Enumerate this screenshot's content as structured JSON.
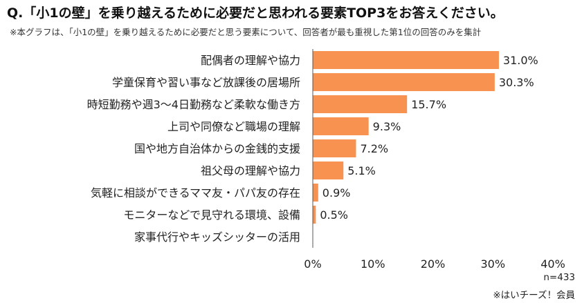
{
  "title": "Q.「小1の壁」を乗り越えるために必要だと思われる要素TOP3をお答えください。",
  "note": "※本グラフは、「小1の壁」を乗り越えるために必要だと思う要素について、回答者が最も重視した第1位の回答のみを集計",
  "footer": {
    "n": "n=433",
    "source": "※はいチーズ！会員"
  },
  "colors": {
    "bar": "#F79250",
    "axis": "#555555"
  },
  "chart_data": {
    "type": "bar",
    "orientation": "horizontal",
    "categories": [
      "配偶者の理解や協力",
      "学童保育や習い事など放課後の居場所",
      "時短勤務や週3〜4日勤務など柔軟な働き方",
      "上司や同僚など職場の理解",
      "国や地方自治体からの金銭的支援",
      "祖父母の理解や協力",
      "気軽に相談ができるママ友・パパ友の存在",
      "モニターなどで見守れる環境、設備",
      "家事代行やキッズシッターの活用"
    ],
    "values": [
      31.0,
      30.3,
      15.7,
      9.3,
      7.2,
      5.1,
      0.9,
      0.5,
      0
    ],
    "value_labels": [
      "31.0%",
      "30.3%",
      "15.7%",
      "9.3%",
      "7.2%",
      "5.1%",
      "0.9%",
      "0.5%",
      ""
    ],
    "xlim": [
      0,
      40
    ],
    "ticks": [
      "0%",
      "10%",
      "20%",
      "30%",
      "40%"
    ],
    "grid": false
  }
}
